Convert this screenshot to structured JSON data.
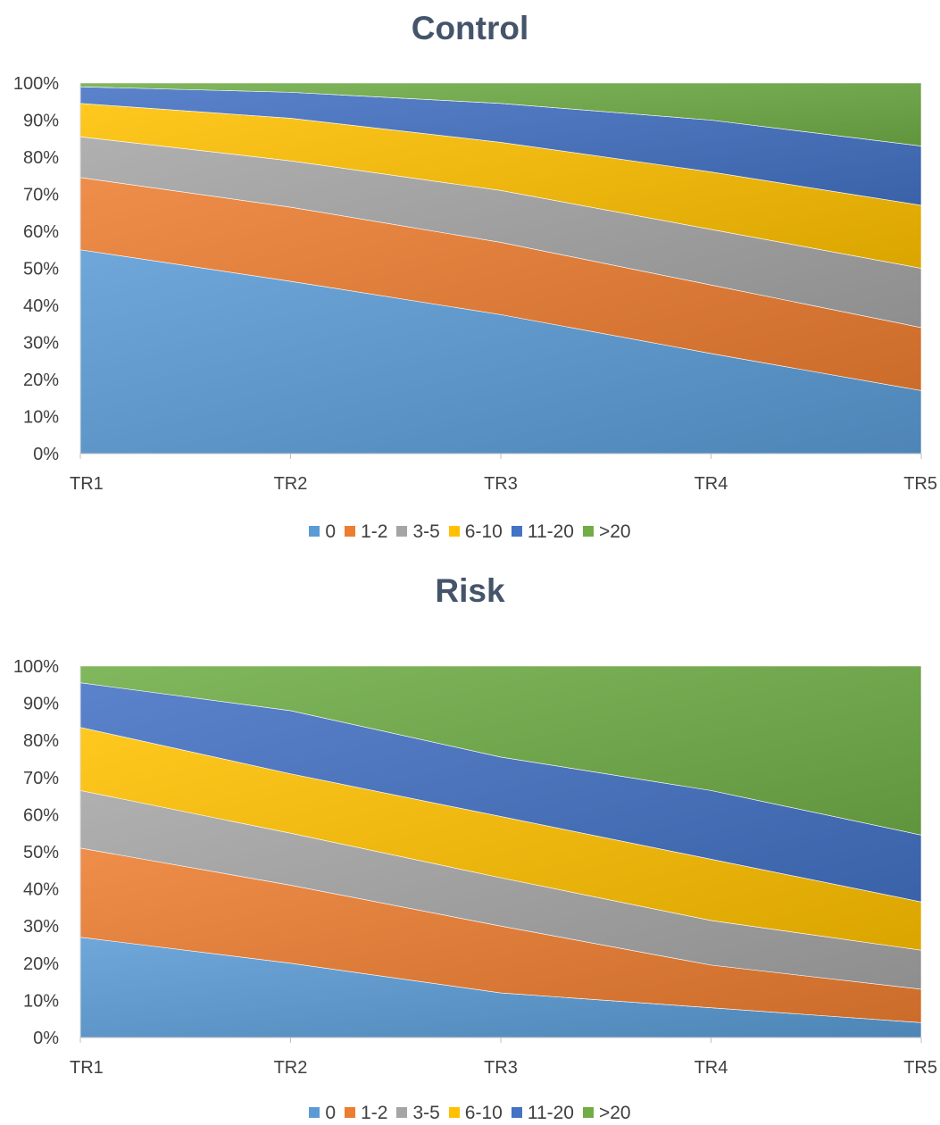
{
  "chart_data": [
    {
      "type": "area",
      "stacked": "percent",
      "title": "Control",
      "categories": [
        "TR1",
        "TR2",
        "TR3",
        "TR4",
        "TR5"
      ],
      "y_ticks": [
        "0%",
        "10%",
        "20%",
        "30%",
        "40%",
        "50%",
        "60%",
        "70%",
        "80%",
        "90%",
        "100%"
      ],
      "ylim": [
        0,
        100
      ],
      "legend_position": "bottom",
      "grid": false,
      "series": [
        {
          "name": "0",
          "color": "#5b9bd5",
          "values": [
            55,
            46.5,
            37.5,
            27,
            17
          ]
        },
        {
          "name": "1-2",
          "color": "#ed7d31",
          "values": [
            19.5,
            20,
            19.5,
            18.5,
            17
          ]
        },
        {
          "name": "3-5",
          "color": "#a5a5a5",
          "values": [
            11,
            12.5,
            14,
            15,
            16
          ]
        },
        {
          "name": "6-10",
          "color": "#ffc000",
          "values": [
            9,
            11.5,
            13,
            15.5,
            17
          ]
        },
        {
          "name": "11-20",
          "color": "#4472c4",
          "values": [
            4.5,
            7,
            10.5,
            14,
            16
          ]
        },
        {
          "name": ">20",
          "color": "#70ad47",
          "values": [
            1,
            2.5,
            5.5,
            10,
            17
          ]
        }
      ]
    },
    {
      "type": "area",
      "stacked": "percent",
      "title": "Risk",
      "categories": [
        "TR1",
        "TR2",
        "TR3",
        "TR4",
        "TR5"
      ],
      "y_ticks": [
        "0%",
        "10%",
        "20%",
        "30%",
        "40%",
        "50%",
        "60%",
        "70%",
        "80%",
        "90%",
        "100%"
      ],
      "ylim": [
        0,
        100
      ],
      "legend_position": "bottom",
      "grid": false,
      "series": [
        {
          "name": "0",
          "color": "#5b9bd5",
          "values": [
            27,
            20,
            12,
            8,
            4
          ]
        },
        {
          "name": "1-2",
          "color": "#ed7d31",
          "values": [
            24,
            21,
            18,
            11.5,
            9
          ]
        },
        {
          "name": "3-5",
          "color": "#a5a5a5",
          "values": [
            15.5,
            14,
            13,
            12,
            10.5
          ]
        },
        {
          "name": "6-10",
          "color": "#ffc000",
          "values": [
            17,
            16,
            16.5,
            16.5,
            13
          ]
        },
        {
          "name": "11-20",
          "color": "#4472c4",
          "values": [
            12,
            17,
            16,
            18.5,
            18
          ]
        },
        {
          "name": ">20",
          "color": "#70ad47",
          "values": [
            4.5,
            12,
            24.5,
            33.5,
            45.5
          ]
        }
      ]
    }
  ]
}
